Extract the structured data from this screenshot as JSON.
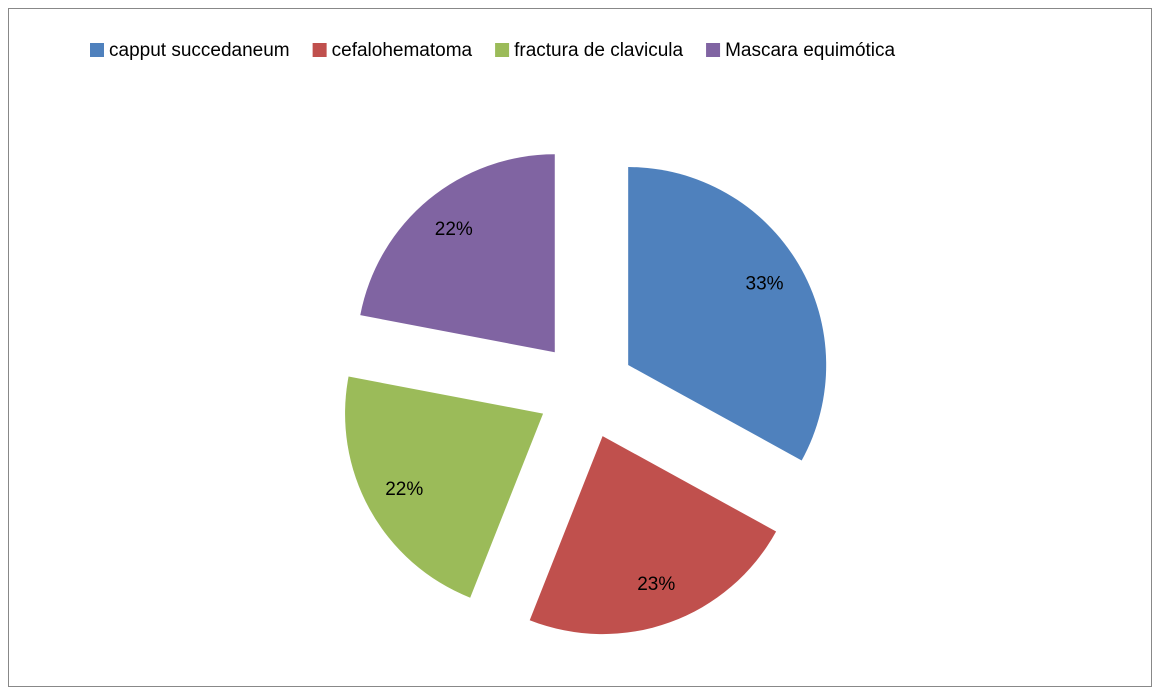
{
  "chart_data": {
    "type": "pie",
    "categories": [
      "capput succedaneum",
      "cefalohematoma",
      "fractura de clavicula",
      "Mascara equimótica"
    ],
    "values": [
      33,
      23,
      22,
      22
    ],
    "value_labels": [
      "33%",
      "23%",
      "22%",
      "22%"
    ],
    "colors": [
      "#4f81bd",
      "#c0504d",
      "#9bbb59",
      "#8064a2"
    ],
    "legend": "top"
  }
}
